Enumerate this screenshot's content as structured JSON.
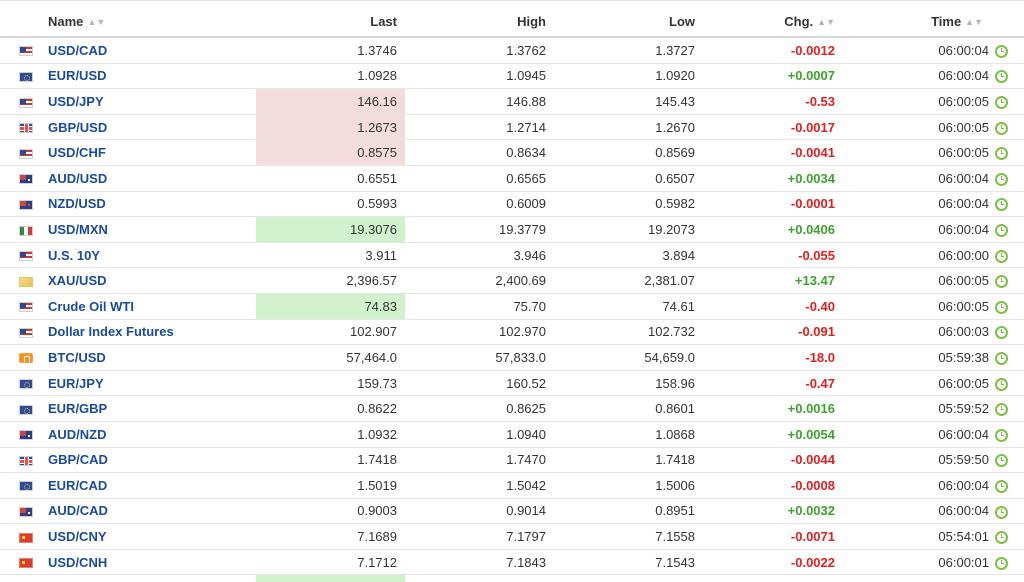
{
  "columns": {
    "name": "Name",
    "last": "Last",
    "high": "High",
    "low": "Low",
    "chg": "Chg.",
    "time": "Time"
  },
  "rows": [
    {
      "flag": "us-flag-icon",
      "name": "USD/CAD",
      "last": "1.3746",
      "high": "1.3762",
      "low": "1.3727",
      "chg": "-0.0012",
      "time": "06:00:04",
      "hl": ""
    },
    {
      "flag": "eu-flag-icon",
      "name": "EUR/USD",
      "last": "1.0928",
      "high": "1.0945",
      "low": "1.0920",
      "chg": "+0.0007",
      "time": "06:00:04",
      "hl": ""
    },
    {
      "flag": "us-flag-icon",
      "name": "USD/JPY",
      "last": "146.16",
      "high": "146.88",
      "low": "145.43",
      "chg": "-0.53",
      "time": "06:00:05",
      "hl": "down"
    },
    {
      "flag": "gb-flag-icon",
      "name": "GBP/USD",
      "last": "1.2673",
      "high": "1.2714",
      "low": "1.2670",
      "chg": "-0.0017",
      "time": "06:00:05",
      "hl": "down"
    },
    {
      "flag": "us-flag-icon",
      "name": "USD/CHF",
      "last": "0.8575",
      "high": "0.8634",
      "low": "0.8569",
      "chg": "-0.0041",
      "time": "06:00:05",
      "hl": "down"
    },
    {
      "flag": "au-flag-icon",
      "name": "AUD/USD",
      "last": "0.6551",
      "high": "0.6565",
      "low": "0.6507",
      "chg": "+0.0034",
      "time": "06:00:04",
      "hl": ""
    },
    {
      "flag": "nz-flag-icon",
      "name": "NZD/USD",
      "last": "0.5993",
      "high": "0.6009",
      "low": "0.5982",
      "chg": "-0.0001",
      "time": "06:00:04",
      "hl": ""
    },
    {
      "flag": "mx-flag-icon",
      "name": "USD/MXN",
      "last": "19.3076",
      "high": "19.3779",
      "low": "19.2073",
      "chg": "+0.0406",
      "time": "06:00:04",
      "hl": "up"
    },
    {
      "flag": "us-flag-icon",
      "name": "U.S. 10Y",
      "last": "3.911",
      "high": "3.946",
      "low": "3.894",
      "chg": "-0.055",
      "time": "06:00:00",
      "hl": ""
    },
    {
      "flag": "gold-icon",
      "name": "XAU/USD",
      "last": "2,396.57",
      "high": "2,400.69",
      "low": "2,381.07",
      "chg": "+13.47",
      "time": "06:00:05",
      "hl": ""
    },
    {
      "flag": "us-flag-icon",
      "name": "Crude Oil WTI",
      "last": "74.83",
      "high": "75.70",
      "low": "74.61",
      "chg": "-0.40",
      "time": "06:00:05",
      "hl": "up"
    },
    {
      "flag": "us-flag-icon",
      "name": "Dollar Index Futures",
      "last": "102.907",
      "high": "102.970",
      "low": "102.732",
      "chg": "-0.091",
      "time": "06:00:03",
      "hl": ""
    },
    {
      "flag": "btc-icon",
      "name": "BTC/USD",
      "last": "57,464.0",
      "high": "57,833.0",
      "low": "54,659.0",
      "chg": "-18.0",
      "time": "05:59:38",
      "hl": ""
    },
    {
      "flag": "eu-flag-icon",
      "name": "EUR/JPY",
      "last": "159.73",
      "high": "160.52",
      "low": "158.96",
      "chg": "-0.47",
      "time": "06:00:05",
      "hl": ""
    },
    {
      "flag": "eu-flag-icon",
      "name": "EUR/GBP",
      "last": "0.8622",
      "high": "0.8625",
      "low": "0.8601",
      "chg": "+0.0016",
      "time": "05:59:52",
      "hl": ""
    },
    {
      "flag": "au-flag-icon",
      "name": "AUD/NZD",
      "last": "1.0932",
      "high": "1.0940",
      "low": "1.0868",
      "chg": "+0.0054",
      "time": "06:00:04",
      "hl": ""
    },
    {
      "flag": "gb-flag-icon",
      "name": "GBP/CAD",
      "last": "1.7418",
      "high": "1.7470",
      "low": "1.7418",
      "chg": "-0.0044",
      "time": "05:59:50",
      "hl": ""
    },
    {
      "flag": "eu-flag-icon",
      "name": "EUR/CAD",
      "last": "1.5019",
      "high": "1.5042",
      "low": "1.5006",
      "chg": "-0.0008",
      "time": "06:00:04",
      "hl": ""
    },
    {
      "flag": "au-flag-icon",
      "name": "AUD/CAD",
      "last": "0.9003",
      "high": "0.9014",
      "low": "0.8951",
      "chg": "+0.0032",
      "time": "06:00:04",
      "hl": ""
    },
    {
      "flag": "cn-flag-icon",
      "name": "USD/CNY",
      "last": "7.1689",
      "high": "7.1797",
      "low": "7.1558",
      "chg": "-0.0071",
      "time": "05:54:01",
      "hl": ""
    },
    {
      "flag": "cn-flag-icon",
      "name": "USD/CNH",
      "last": "7.1712",
      "high": "7.1843",
      "low": "7.1543",
      "chg": "-0.0022",
      "time": "06:00:01",
      "hl": ""
    }
  ]
}
